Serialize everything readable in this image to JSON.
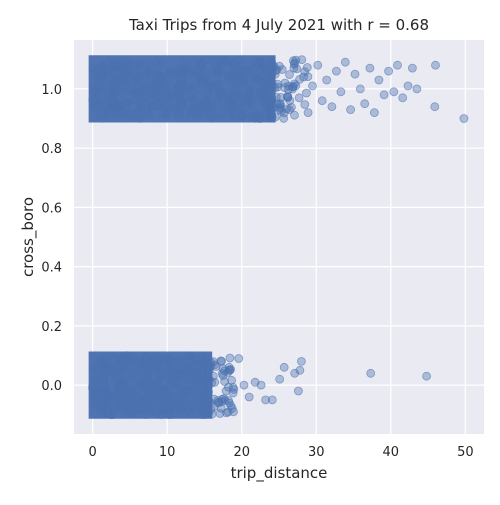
{
  "chart_data": {
    "type": "scatter",
    "title": "Taxi Trips from 4 July 2021 with r = 0.68",
    "xlabel": "trip_distance",
    "ylabel": "cross_boro",
    "xlim": [
      -2.5,
      52.5
    ],
    "ylim": [
      -0.165,
      1.165
    ],
    "xticks": [
      0,
      10,
      20,
      30,
      40,
      50
    ],
    "xtick_labels": [
      "0",
      "10",
      "20",
      "30",
      "40",
      "50"
    ],
    "yticks": [
      0.0,
      0.2,
      0.4,
      0.6,
      0.8,
      1.0
    ],
    "ytick_labels": [
      "0.0",
      "0.2",
      "0.4",
      "0.6",
      "0.8",
      "1.0"
    ],
    "grid": true,
    "jitter": 0.1,
    "marker_color": "#4c72b0",
    "background_color": "#eaeaf2",
    "grid_color": "#ffffff",
    "series": [
      {
        "name": "cross_boro = 0",
        "y_center": 0,
        "dense_x_range": [
          0,
          15.5
        ],
        "sparse_points": [
          {
            "x": 16.2,
            "y": 0.03
          },
          {
            "x": 16.8,
            "y": -0.06
          },
          {
            "x": 17.3,
            "y": 0.08
          },
          {
            "x": 17.9,
            "y": -0.02
          },
          {
            "x": 18.4,
            "y": 0.05
          },
          {
            "x": 18.9,
            "y": -0.09
          },
          {
            "x": 19.6,
            "y": 0.09
          },
          {
            "x": 20.3,
            "y": 0.0
          },
          {
            "x": 21.0,
            "y": -0.04
          },
          {
            "x": 21.8,
            "y": 0.01
          },
          {
            "x": 22.6,
            "y": 0.0
          },
          {
            "x": 23.2,
            "y": -0.05
          },
          {
            "x": 24.1,
            "y": -0.05
          },
          {
            "x": 25.1,
            "y": 0.02
          },
          {
            "x": 25.7,
            "y": 0.06
          },
          {
            "x": 27.1,
            "y": 0.04
          },
          {
            "x": 27.8,
            "y": 0.05
          },
          {
            "x": 28.0,
            "y": 0.08
          },
          {
            "x": 27.6,
            "y": -0.02
          },
          {
            "x": 37.3,
            "y": 0.04
          },
          {
            "x": 44.8,
            "y": 0.03
          }
        ]
      },
      {
        "name": "cross_boro = 1",
        "y_center": 1,
        "dense_x_range": [
          0,
          24
        ],
        "sparse_points": [
          {
            "x": 24.5,
            "y": 1.05
          },
          {
            "x": 25.2,
            "y": 0.95
          },
          {
            "x": 25.8,
            "y": 1.02
          },
          {
            "x": 26.4,
            "y": 0.93
          },
          {
            "x": 27.0,
            "y": 1.07
          },
          {
            "x": 27.7,
            "y": 0.97
          },
          {
            "x": 28.3,
            "y": 1.04
          },
          {
            "x": 28.9,
            "y": 0.92
          },
          {
            "x": 29.5,
            "y": 1.01
          },
          {
            "x": 30.2,
            "y": 1.08
          },
          {
            "x": 30.8,
            "y": 0.96
          },
          {
            "x": 31.4,
            "y": 1.03
          },
          {
            "x": 32.1,
            "y": 0.94
          },
          {
            "x": 32.7,
            "y": 1.06
          },
          {
            "x": 33.3,
            "y": 0.99
          },
          {
            "x": 33.9,
            "y": 1.09
          },
          {
            "x": 34.6,
            "y": 0.93
          },
          {
            "x": 35.2,
            "y": 1.05
          },
          {
            "x": 35.9,
            "y": 1.0
          },
          {
            "x": 36.5,
            "y": 0.95
          },
          {
            "x": 37.2,
            "y": 1.07
          },
          {
            "x": 37.8,
            "y": 0.92
          },
          {
            "x": 38.4,
            "y": 1.03
          },
          {
            "x": 39.1,
            "y": 0.98
          },
          {
            "x": 39.7,
            "y": 1.06
          },
          {
            "x": 40.4,
            "y": 0.99
          },
          {
            "x": 40.9,
            "y": 1.08
          },
          {
            "x": 41.6,
            "y": 0.97
          },
          {
            "x": 42.3,
            "y": 1.01
          },
          {
            "x": 42.9,
            "y": 1.07
          },
          {
            "x": 43.5,
            "y": 1.0
          },
          {
            "x": 45.9,
            "y": 0.94
          },
          {
            "x": 46.0,
            "y": 1.08
          },
          {
            "x": 49.8,
            "y": 0.9
          }
        ]
      }
    ]
  }
}
